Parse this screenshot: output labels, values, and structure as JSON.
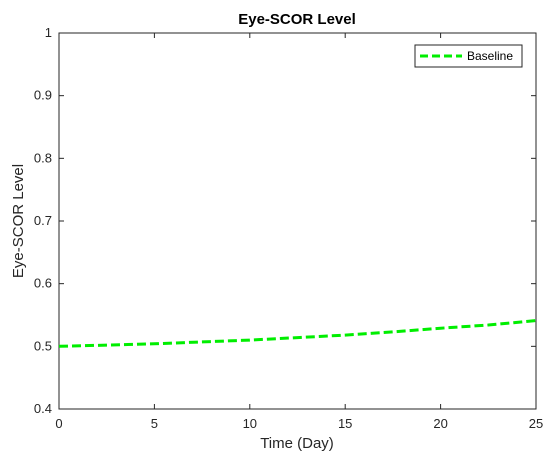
{
  "chart_data": {
    "type": "line",
    "title": "Eye-SCOR Level",
    "xlabel": "Time (Day)",
    "ylabel": "Eye-SCOR Level",
    "xlim": [
      0,
      25
    ],
    "ylim": [
      0.4,
      1
    ],
    "xticks": [
      0,
      5,
      10,
      15,
      20,
      25
    ],
    "yticks": [
      0.4,
      0.5,
      0.6,
      0.7,
      0.8,
      0.9,
      1
    ],
    "grid": false,
    "legend_position": "top-right",
    "series": [
      {
        "name": "Baseline",
        "color": "#00ee00",
        "line_style": "dashed",
        "x": [
          0,
          2.5,
          5,
          7.5,
          10,
          12.5,
          15,
          17.5,
          20,
          22.5,
          25
        ],
        "y": [
          0.5,
          0.502,
          0.504,
          0.507,
          0.51,
          0.514,
          0.518,
          0.523,
          0.529,
          0.534,
          0.541
        ]
      }
    ]
  }
}
